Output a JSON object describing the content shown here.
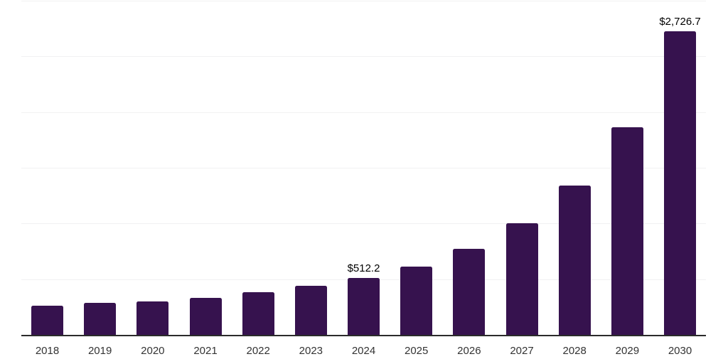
{
  "chart_data": {
    "type": "bar",
    "title": "",
    "xlabel": "",
    "ylabel": "",
    "categories": [
      "2018",
      "2019",
      "2020",
      "2021",
      "2022",
      "2023",
      "2024",
      "2025",
      "2026",
      "2027",
      "2028",
      "2029",
      "2030"
    ],
    "values": [
      262,
      285,
      301,
      335,
      380,
      438,
      512.2,
      612,
      772,
      1003,
      1340,
      1864,
      2726.7
    ],
    "value_labels": {
      "2024": "$512.2",
      "2030": "$2,726.7"
    },
    "ylim": [
      0,
      3000
    ],
    "gridline_step": 500,
    "grid": "horizontal",
    "legend": "none",
    "y_axis_tick_labels_visible": false,
    "colors": {
      "bar": "#36124e",
      "gridline": "#f1f1f2",
      "axis_line": "#2b2b2b",
      "tick_label": "#333333",
      "data_label": "#000000",
      "background": "#ffffff"
    }
  }
}
